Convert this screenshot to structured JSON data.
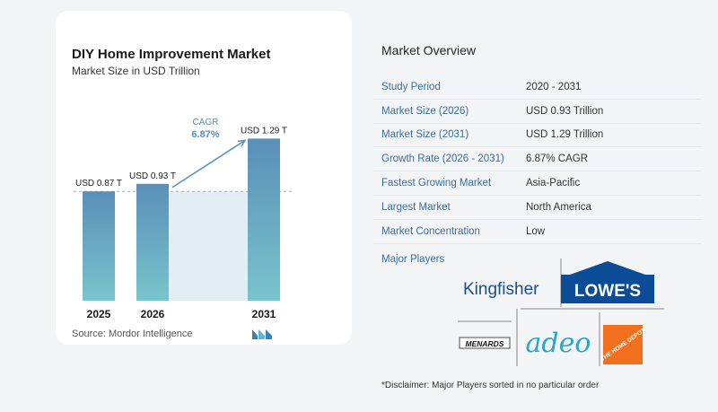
{
  "chart_data": {
    "type": "bar",
    "title": "DIY Home Improvement Market",
    "subtitle": "Market Size in USD Trillion",
    "categories": [
      "2025",
      "2026",
      "2031"
    ],
    "values": [
      0.87,
      0.93,
      1.29
    ],
    "value_labels": [
      "USD 0.87 T",
      "USD 0.93 T",
      "USD 1.29 T"
    ],
    "annotation": {
      "label": "CAGR",
      "value": "6.87%"
    },
    "bar_color_top": "#5a8fb8",
    "bar_color_bottom": "#79c4cc",
    "band_color": "#e3edf4",
    "grid": false
  },
  "source": "Source:  Mordor Intelligence",
  "brand_logo_icon": "mordor-intelligence-logo",
  "overview": {
    "title": "Market Overview",
    "rows": [
      {
        "label": "Study Period",
        "value": "2020 - 2031"
      },
      {
        "label": "Market Size (2026)",
        "value": "USD 0.93 Trillion"
      },
      {
        "label": "Market Size (2031)",
        "value": "USD 1.29 Trillion"
      },
      {
        "label": "Growth Rate (2026 - 2031)",
        "value": "6.87% CAGR"
      },
      {
        "label": "Fastest Growing Market",
        "value": "Asia-Pacific"
      },
      {
        "label": "Largest Market",
        "value": "North America"
      },
      {
        "label": "Market Concentration",
        "value": "Low"
      }
    ],
    "players_label": "Major Players",
    "players": [
      "Kingfisher",
      "LOWE'S",
      "MENARDS",
      "adeo",
      "THE HOME DEPOT"
    ],
    "disclaimer": "*Disclaimer: Major Players sorted in no particular order"
  },
  "colors": {
    "label_blue": "#3a6e9a",
    "accent": "#5a8fb8"
  }
}
